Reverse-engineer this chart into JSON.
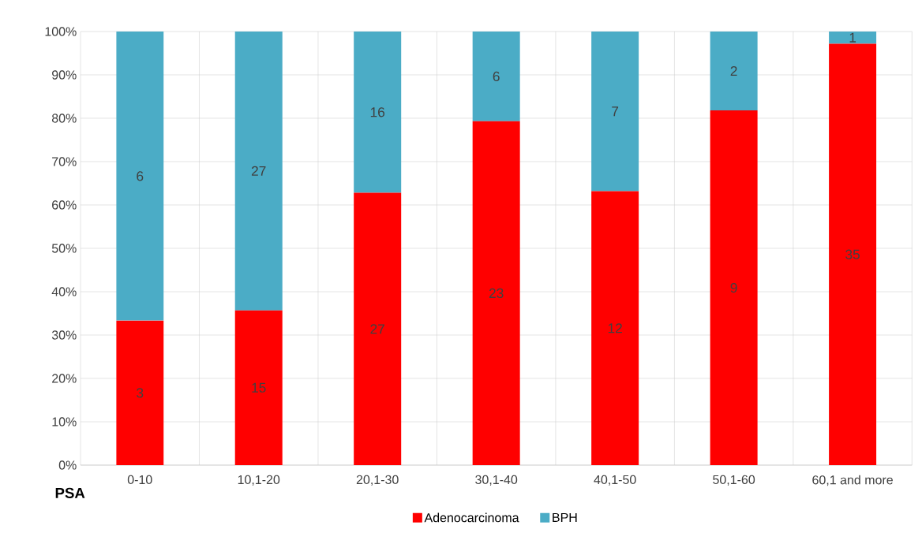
{
  "chart_data": {
    "type": "bar",
    "stacked": true,
    "xlabel": "PSA",
    "categories": [
      "0-10",
      "10,1-20",
      "20,1-30",
      "30,1-40",
      "40,1-50",
      "50,1-60",
      "60,1 and more"
    ],
    "series": [
      {
        "name": "Adenocarcinoma",
        "color": "#ff0000",
        "values": [
          33.3,
          35.7,
          62.8,
          79.3,
          63.2,
          81.8,
          97.2
        ]
      },
      {
        "name": "BPH",
        "color": "#4bacc6",
        "values": [
          66.7,
          64.3,
          37.2,
          20.7,
          36.8,
          18.2,
          2.8
        ]
      }
    ],
    "annotations": [
      "3",
      "15",
      "27",
      "23",
      "12",
      "9",
      "35",
      "6",
      "27",
      "16",
      "6",
      "7",
      "2",
      "1"
    ],
    "ylim": [
      0,
      100
    ],
    "yticks": [
      {
        "value": 0,
        "label": "0%"
      },
      {
        "value": 10,
        "label": "10%"
      },
      {
        "value": 20,
        "label": "20%"
      },
      {
        "value": 30,
        "label": "30%"
      },
      {
        "value": 40,
        "label": "40%"
      },
      {
        "value": 50,
        "label": "50%"
      },
      {
        "value": 60,
        "label": "60%"
      },
      {
        "value": 70,
        "label": "70%"
      },
      {
        "value": 80,
        "label": "80%"
      },
      {
        "value": 90,
        "label": "90%"
      },
      {
        "value": 100,
        "label": "100%"
      }
    ],
    "grid": true,
    "legend": "bottom"
  }
}
